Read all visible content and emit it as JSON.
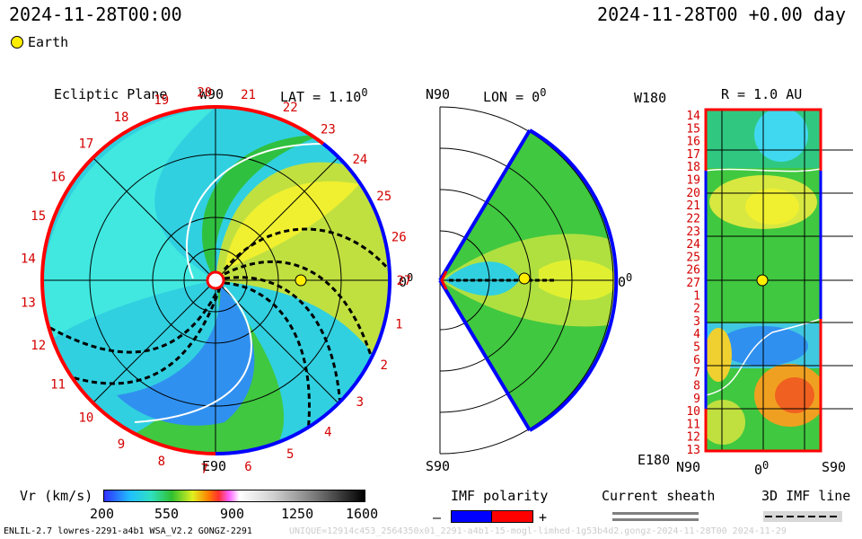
{
  "header": {
    "datetime_left": "2024-11-28T00:00",
    "datetime_right": "2024-11-28T00 +0.00 day",
    "legend_marker_label": "Earth"
  },
  "colors": {
    "earth_marker": "#ffee00",
    "boundary_red": "#ff0000",
    "boundary_blue": "#0000ff",
    "tick_red": "#d40000"
  },
  "ecliptic_panel": {
    "title": "Ecliptic Plane",
    "lat_label": "LAT = 1.10",
    "lat_sup": "0",
    "top_label": "W90",
    "bottom_label": "E90",
    "right_label": "0",
    "right_sup": "0",
    "day_labels": [
      "27",
      "1",
      "2",
      "3",
      "4",
      "5",
      "6",
      "7",
      "8",
      "9",
      "10",
      "11",
      "12",
      "13",
      "14",
      "15",
      "16",
      "17",
      "18",
      "19",
      "20",
      "21",
      "22",
      "23",
      "24",
      "25",
      "26"
    ]
  },
  "meridional_panel": {
    "top_left": "N90",
    "lon_label": "LON = 0",
    "lon_sup": "0",
    "bottom_left": "S90",
    "right_label": "0",
    "right_sup": "0"
  },
  "radial_panel": {
    "top_left": "W180",
    "r_label": "R = 1.0 AU",
    "bottom_left": "E180",
    "bottom_axis": [
      "N90",
      "0",
      "S90"
    ],
    "bottom_axis_sup": "0",
    "day_labels": [
      "14",
      "15",
      "16",
      "17",
      "18",
      "19",
      "20",
      "21",
      "22",
      "23",
      "24",
      "25",
      "26",
      "27",
      "1",
      "2",
      "3",
      "4",
      "5",
      "6",
      "7",
      "8",
      "9",
      "10",
      "11",
      "12",
      "13"
    ]
  },
  "colorbar": {
    "label": "Vr (km/s)",
    "ticks": [
      "200",
      "550",
      "900",
      "1250",
      "1600"
    ]
  },
  "imf_legend": {
    "title": "IMF polarity",
    "minus": "–",
    "plus": "+"
  },
  "sheath_legend": {
    "title": "Current sheath"
  },
  "imf_line_legend": {
    "title": "3D IMF line"
  },
  "footer": {
    "left": "ENLIL-2.7 lowres-2291-a4b1 WSA_V2.2 GONGZ-2291",
    "right": "UNIQUE=12914c453_2564350x01_2291-a4b1-15-mogl-limhed-1g53b4d2.gongz-2024-11-28T00   2024-11-29"
  }
}
